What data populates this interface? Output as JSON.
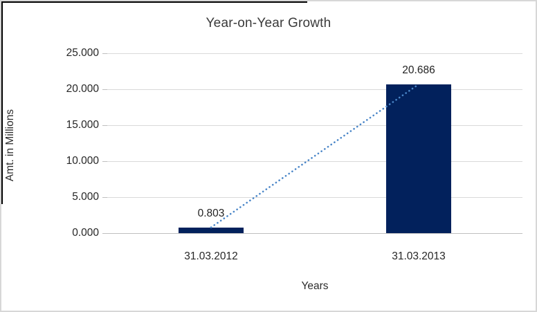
{
  "chart_data": {
    "type": "bar",
    "title": "Year-on-Year Growth",
    "xlabel": "Years",
    "ylabel": "Amt. in Millions",
    "categories": [
      "31.03.2012",
      "31.03.2013"
    ],
    "values": [
      0.803,
      20.686
    ],
    "data_labels": [
      "0.803",
      "20.686"
    ],
    "y_ticks": [
      "0.000",
      "5.000",
      "10.000",
      "15.000",
      "20.000",
      "25.000"
    ],
    "ylim": [
      0,
      25
    ],
    "grid": true,
    "legend": "none",
    "trendline": {
      "type": "linear",
      "style": "dotted",
      "color": "#4A86C8"
    },
    "bar_color": "#02215C"
  },
  "colors": {
    "background": "#FFFFFF",
    "bar": "#02215C",
    "trendline": "#4A86C8",
    "gridline": "#D9D9D9",
    "axis_line": "#BFBFBF",
    "tick_text": "#262626",
    "title_text": "#3A3A3A",
    "frame_border": "#D7D7D7",
    "frame_accent": "#000000"
  }
}
